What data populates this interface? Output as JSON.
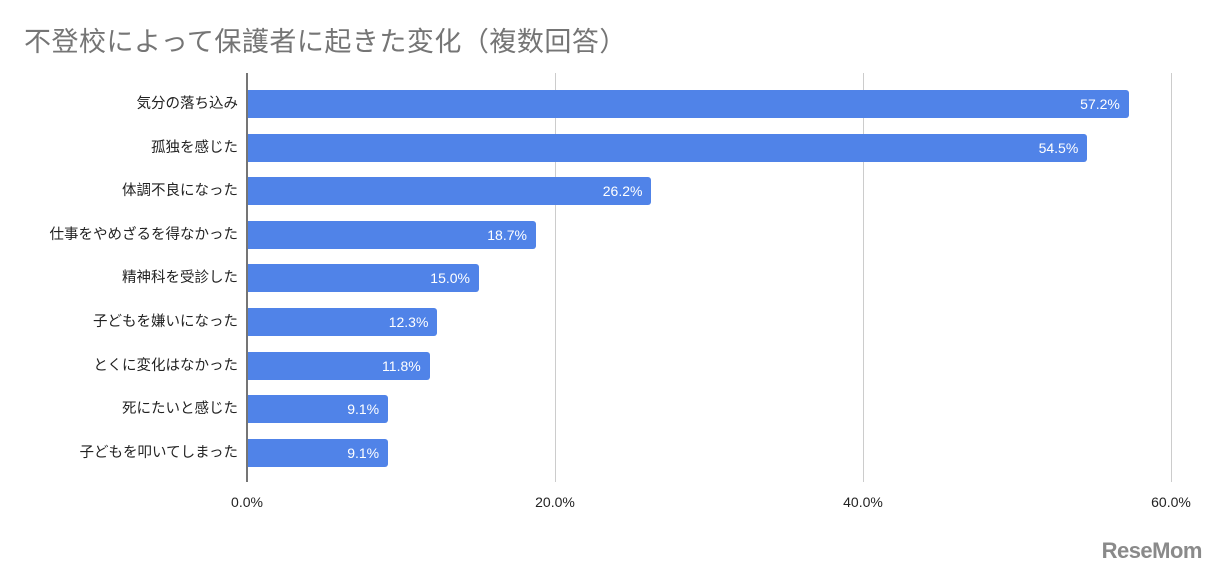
{
  "chart_data": {
    "type": "bar",
    "orientation": "horizontal",
    "title": "不登校によって保護者に起きた変化（複数回答）",
    "xlabel": "",
    "ylabel": "",
    "xlim": [
      0,
      60
    ],
    "grid": true,
    "legend": null,
    "categories": [
      "気分の落ち込み",
      "孤独を感じた",
      "体調不良になった",
      "仕事をやめざるを得なかった",
      "精神科を受診した",
      "子どもを嫌いになった",
      "とくに変化はなかった",
      "死にたいと感じた",
      "子どもを叩いてしまった"
    ],
    "values": [
      57.2,
      54.5,
      26.2,
      18.7,
      15.0,
      12.3,
      11.8,
      9.1,
      9.1
    ],
    "value_labels": [
      "57.2%",
      "54.5%",
      "26.2%",
      "18.7%",
      "15.0%",
      "12.3%",
      "11.8%",
      "9.1%",
      "9.1%"
    ],
    "x_ticks": [
      0,
      20,
      40,
      60
    ],
    "x_tick_labels": [
      "0.0%",
      "20.0%",
      "40.0%",
      "60.0%"
    ],
    "bar_color": "#5083e8"
  },
  "watermark": "ReseMom"
}
